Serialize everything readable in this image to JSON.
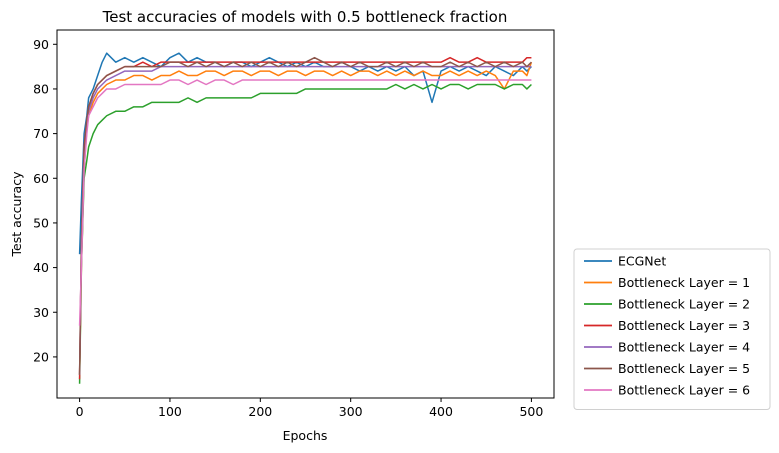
{
  "chart_data": {
    "type": "line",
    "title": "Test accuracies of models with 0.5 bottleneck fraction",
    "xlabel": "Epochs",
    "ylabel": "Test accuracy",
    "xlim": [
      -25,
      525
    ],
    "ylim": [
      10.8,
      93.2
    ],
    "x_ticks": [
      0,
      100,
      200,
      300,
      400,
      500
    ],
    "y_ticks": [
      20,
      30,
      40,
      50,
      60,
      70,
      80,
      90
    ],
    "grid": false,
    "legend_position": "outside-lower-right",
    "x": [
      0,
      2,
      5,
      8,
      10,
      15,
      20,
      25,
      30,
      40,
      50,
      60,
      70,
      80,
      90,
      100,
      110,
      120,
      130,
      140,
      150,
      160,
      170,
      180,
      190,
      200,
      210,
      220,
      230,
      240,
      250,
      260,
      270,
      280,
      290,
      300,
      310,
      320,
      330,
      340,
      350,
      360,
      370,
      380,
      390,
      400,
      410,
      420,
      430,
      440,
      450,
      460,
      470,
      480,
      490,
      495,
      500
    ],
    "series": [
      {
        "name": "ECGNet",
        "color": "#1f77b4",
        "values": [
          43,
          55,
          70,
          74,
          78,
          80,
          83,
          86,
          88,
          86,
          87,
          86,
          87,
          86,
          85,
          87,
          88,
          86,
          87,
          86,
          86,
          85,
          86,
          86,
          85,
          86,
          87,
          86,
          85,
          86,
          85,
          86,
          85,
          85,
          86,
          85,
          84,
          85,
          84,
          85,
          84,
          85,
          83,
          84,
          77,
          84,
          85,
          84,
          85,
          84,
          83,
          85,
          84,
          83,
          85,
          84,
          85
        ]
      },
      {
        "name": "Bottleneck Layer = 1",
        "color": "#ff7f0e",
        "values": [
          16,
          40,
          62,
          71,
          74,
          77,
          79,
          80,
          81,
          82,
          82,
          83,
          83,
          82,
          83,
          83,
          84,
          83,
          83,
          84,
          84,
          83,
          84,
          84,
          83,
          84,
          84,
          83,
          84,
          84,
          83,
          84,
          84,
          83,
          84,
          83,
          84,
          84,
          83,
          84,
          83,
          84,
          83,
          84,
          83,
          83,
          84,
          83,
          84,
          83,
          84,
          83,
          80,
          84,
          84,
          83,
          86
        ]
      },
      {
        "name": "Bottleneck Layer = 2",
        "color": "#2ca02c",
        "values": [
          14,
          40,
          60,
          64,
          67,
          70,
          72,
          73,
          74,
          75,
          75,
          76,
          76,
          77,
          77,
          77,
          77,
          78,
          77,
          78,
          78,
          78,
          78,
          78,
          78,
          79,
          79,
          79,
          79,
          79,
          80,
          80,
          80,
          80,
          80,
          80,
          80,
          80,
          80,
          80,
          81,
          80,
          81,
          80,
          81,
          80,
          81,
          81,
          80,
          81,
          81,
          81,
          80,
          81,
          81,
          80,
          81
        ]
      },
      {
        "name": "Bottleneck Layer = 3",
        "color": "#d62728",
        "values": [
          15,
          45,
          67,
          73,
          76,
          79,
          81,
          82,
          83,
          84,
          85,
          85,
          86,
          85,
          86,
          86,
          86,
          86,
          86,
          86,
          86,
          86,
          86,
          86,
          86,
          86,
          86,
          86,
          86,
          86,
          86,
          86,
          86,
          86,
          86,
          86,
          86,
          86,
          86,
          86,
          86,
          86,
          86,
          86,
          86,
          86,
          87,
          86,
          86,
          87,
          86,
          86,
          86,
          86,
          86,
          87,
          87
        ]
      },
      {
        "name": "Bottleneck Layer = 4",
        "color": "#9467bd",
        "values": [
          16,
          45,
          66,
          72,
          75,
          78,
          80,
          81,
          82,
          83,
          84,
          84,
          84,
          84,
          85,
          85,
          85,
          85,
          85,
          85,
          85,
          85,
          85,
          85,
          85,
          85,
          85,
          85,
          85,
          85,
          85,
          85,
          85,
          85,
          85,
          85,
          85,
          85,
          85,
          85,
          85,
          85,
          85,
          85,
          85,
          85,
          85,
          85,
          85,
          85,
          85,
          85,
          85,
          85,
          85,
          85,
          85
        ]
      },
      {
        "name": "Bottleneck Layer = 5",
        "color": "#8c564b",
        "values": [
          16,
          46,
          66,
          73,
          76,
          79,
          81,
          82,
          83,
          84,
          85,
          85,
          85,
          85,
          85,
          86,
          86,
          85,
          86,
          85,
          86,
          85,
          86,
          85,
          86,
          85,
          86,
          85,
          86,
          85,
          86,
          87,
          86,
          85,
          86,
          85,
          86,
          85,
          85,
          86,
          85,
          86,
          85,
          86,
          85,
          85,
          86,
          85,
          86,
          85,
          86,
          85,
          86,
          85,
          86,
          85,
          86
        ]
      },
      {
        "name": "Bottleneck Layer = 6",
        "color": "#e377c2",
        "values": [
          27,
          40,
          62,
          70,
          74,
          76,
          78,
          79,
          80,
          80,
          81,
          81,
          81,
          81,
          81,
          82,
          82,
          81,
          82,
          81,
          82,
          82,
          81,
          82,
          82,
          82,
          82,
          82,
          82,
          82,
          82,
          82,
          82,
          82,
          82,
          82,
          82,
          82,
          82,
          82,
          82,
          82,
          82,
          82,
          82,
          82,
          82,
          82,
          82,
          82,
          82,
          82,
          82,
          82,
          82,
          82,
          82
        ]
      }
    ]
  }
}
